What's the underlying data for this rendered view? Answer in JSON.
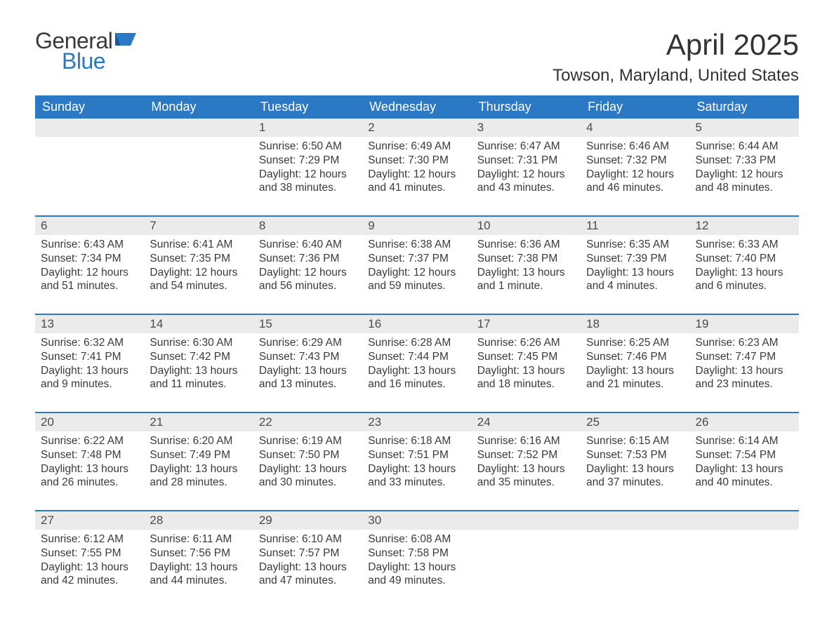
{
  "logo": {
    "word1": "General",
    "word2": "Blue",
    "flag_color": "#2b78c5",
    "text_gray": "#3a3a3a"
  },
  "title": "April 2025",
  "location": "Towson, Maryland, United States",
  "colors": {
    "header_bg": "#2b78c5",
    "header_text": "#ffffff",
    "daynum_bg": "#ebebeb",
    "body_text": "#3a3a3a",
    "week_border": "#2b78c5",
    "page_bg": "#ffffff"
  },
  "typography": {
    "title_fontsize": 42,
    "location_fontsize": 24,
    "dow_fontsize": 18,
    "daynum_fontsize": 17,
    "body_fontsize": 15.5,
    "logo_fontsize": 32
  },
  "days_of_week": [
    "Sunday",
    "Monday",
    "Tuesday",
    "Wednesday",
    "Thursday",
    "Friday",
    "Saturday"
  ],
  "weeks": [
    [
      {
        "day": null
      },
      {
        "day": null
      },
      {
        "day": 1,
        "sunrise": "6:50 AM",
        "sunset": "7:29 PM",
        "daylight": "12 hours and 38 minutes."
      },
      {
        "day": 2,
        "sunrise": "6:49 AM",
        "sunset": "7:30 PM",
        "daylight": "12 hours and 41 minutes."
      },
      {
        "day": 3,
        "sunrise": "6:47 AM",
        "sunset": "7:31 PM",
        "daylight": "12 hours and 43 minutes."
      },
      {
        "day": 4,
        "sunrise": "6:46 AM",
        "sunset": "7:32 PM",
        "daylight": "12 hours and 46 minutes."
      },
      {
        "day": 5,
        "sunrise": "6:44 AM",
        "sunset": "7:33 PM",
        "daylight": "12 hours and 48 minutes."
      }
    ],
    [
      {
        "day": 6,
        "sunrise": "6:43 AM",
        "sunset": "7:34 PM",
        "daylight": "12 hours and 51 minutes."
      },
      {
        "day": 7,
        "sunrise": "6:41 AM",
        "sunset": "7:35 PM",
        "daylight": "12 hours and 54 minutes."
      },
      {
        "day": 8,
        "sunrise": "6:40 AM",
        "sunset": "7:36 PM",
        "daylight": "12 hours and 56 minutes."
      },
      {
        "day": 9,
        "sunrise": "6:38 AM",
        "sunset": "7:37 PM",
        "daylight": "12 hours and 59 minutes."
      },
      {
        "day": 10,
        "sunrise": "6:36 AM",
        "sunset": "7:38 PM",
        "daylight": "13 hours and 1 minute."
      },
      {
        "day": 11,
        "sunrise": "6:35 AM",
        "sunset": "7:39 PM",
        "daylight": "13 hours and 4 minutes."
      },
      {
        "day": 12,
        "sunrise": "6:33 AM",
        "sunset": "7:40 PM",
        "daylight": "13 hours and 6 minutes."
      }
    ],
    [
      {
        "day": 13,
        "sunrise": "6:32 AM",
        "sunset": "7:41 PM",
        "daylight": "13 hours and 9 minutes."
      },
      {
        "day": 14,
        "sunrise": "6:30 AM",
        "sunset": "7:42 PM",
        "daylight": "13 hours and 11 minutes."
      },
      {
        "day": 15,
        "sunrise": "6:29 AM",
        "sunset": "7:43 PM",
        "daylight": "13 hours and 13 minutes."
      },
      {
        "day": 16,
        "sunrise": "6:28 AM",
        "sunset": "7:44 PM",
        "daylight": "13 hours and 16 minutes."
      },
      {
        "day": 17,
        "sunrise": "6:26 AM",
        "sunset": "7:45 PM",
        "daylight": "13 hours and 18 minutes."
      },
      {
        "day": 18,
        "sunrise": "6:25 AM",
        "sunset": "7:46 PM",
        "daylight": "13 hours and 21 minutes."
      },
      {
        "day": 19,
        "sunrise": "6:23 AM",
        "sunset": "7:47 PM",
        "daylight": "13 hours and 23 minutes."
      }
    ],
    [
      {
        "day": 20,
        "sunrise": "6:22 AM",
        "sunset": "7:48 PM",
        "daylight": "13 hours and 26 minutes."
      },
      {
        "day": 21,
        "sunrise": "6:20 AM",
        "sunset": "7:49 PM",
        "daylight": "13 hours and 28 minutes."
      },
      {
        "day": 22,
        "sunrise": "6:19 AM",
        "sunset": "7:50 PM",
        "daylight": "13 hours and 30 minutes."
      },
      {
        "day": 23,
        "sunrise": "6:18 AM",
        "sunset": "7:51 PM",
        "daylight": "13 hours and 33 minutes."
      },
      {
        "day": 24,
        "sunrise": "6:16 AM",
        "sunset": "7:52 PM",
        "daylight": "13 hours and 35 minutes."
      },
      {
        "day": 25,
        "sunrise": "6:15 AM",
        "sunset": "7:53 PM",
        "daylight": "13 hours and 37 minutes."
      },
      {
        "day": 26,
        "sunrise": "6:14 AM",
        "sunset": "7:54 PM",
        "daylight": "13 hours and 40 minutes."
      }
    ],
    [
      {
        "day": 27,
        "sunrise": "6:12 AM",
        "sunset": "7:55 PM",
        "daylight": "13 hours and 42 minutes."
      },
      {
        "day": 28,
        "sunrise": "6:11 AM",
        "sunset": "7:56 PM",
        "daylight": "13 hours and 44 minutes."
      },
      {
        "day": 29,
        "sunrise": "6:10 AM",
        "sunset": "7:57 PM",
        "daylight": "13 hours and 47 minutes."
      },
      {
        "day": 30,
        "sunrise": "6:08 AM",
        "sunset": "7:58 PM",
        "daylight": "13 hours and 49 minutes."
      },
      {
        "day": null
      },
      {
        "day": null
      },
      {
        "day": null
      }
    ]
  ],
  "labels": {
    "sunrise_prefix": "Sunrise: ",
    "sunset_prefix": "Sunset: ",
    "daylight_prefix": "Daylight: "
  }
}
